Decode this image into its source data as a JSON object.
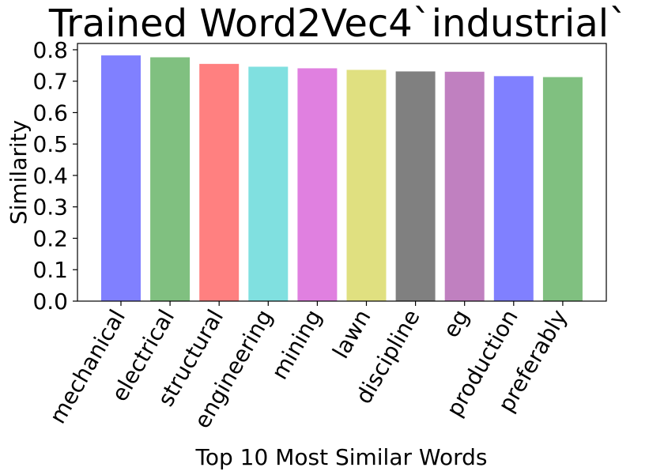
{
  "chart_data": {
    "type": "bar",
    "title": "Trained Word2Vec4`industrial`",
    "xlabel": "Top 10 Most Similar Words",
    "ylabel": "Similarity",
    "categories": [
      "mechanical",
      "electrical",
      "structural",
      "engineering",
      "mining",
      "lawn",
      "discipline",
      "eg",
      "production",
      "preferably"
    ],
    "values": [
      0.782,
      0.776,
      0.755,
      0.746,
      0.741,
      0.736,
      0.731,
      0.73,
      0.716,
      0.713
    ],
    "ylim": [
      0,
      0.82
    ],
    "yticks": [
      "0.0",
      "0.1",
      "0.2",
      "0.3",
      "0.4",
      "0.5",
      "0.6",
      "0.7",
      "0.8"
    ],
    "colors": [
      "#8080ff",
      "#80c080",
      "#ff8080",
      "#80e0e0",
      "#e080e0",
      "#e0e080",
      "#808080",
      "#c080c0",
      "#8080ff",
      "#80c080"
    ],
    "grid": false,
    "legend": "none"
  }
}
